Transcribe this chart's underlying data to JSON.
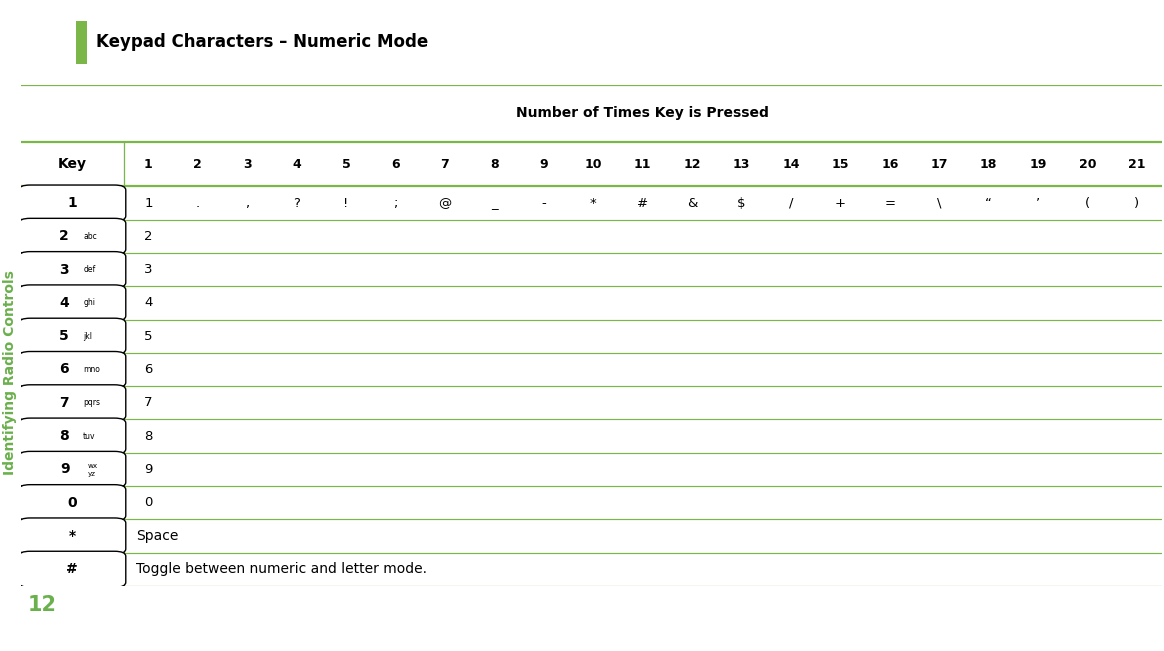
{
  "title": "Keypad Characters – Numeric Mode",
  "sidebar_text": "Identifying Radio Controls",
  "page_number": "12",
  "col_header": "Number of Times Key is Pressed",
  "col_numbers": [
    "1",
    "2",
    "3",
    "4",
    "5",
    "6",
    "7",
    "8",
    "9",
    "10",
    "11",
    "12",
    "13",
    "14",
    "15",
    "16",
    "17",
    "18",
    "19",
    "20",
    "21"
  ],
  "rows": [
    {
      "key_num": "1",
      "key_sub": "",
      "data": [
        "1",
        ".",
        ",",
        "?",
        "!",
        ";",
        "@",
        "_",
        "-",
        "*",
        "#",
        "&",
        "$",
        "/",
        "+",
        "=",
        "\\",
        "“",
        "’",
        "(",
        ")"
      ]
    },
    {
      "key_num": "2",
      "key_sub": "abc",
      "data": [
        "2",
        "",
        "",
        "",
        "",
        "",
        "",
        "",
        "",
        "",
        "",
        "",
        "",
        "",
        "",
        "",
        "",
        "",
        "",
        "",
        ""
      ]
    },
    {
      "key_num": "3",
      "key_sub": "def",
      "data": [
        "3",
        "",
        "",
        "",
        "",
        "",
        "",
        "",
        "",
        "",
        "",
        "",
        "",
        "",
        "",
        "",
        "",
        "",
        "",
        "",
        ""
      ]
    },
    {
      "key_num": "4",
      "key_sub": "ghi",
      "data": [
        "4",
        "",
        "",
        "",
        "",
        "",
        "",
        "",
        "",
        "",
        "",
        "",
        "",
        "",
        "",
        "",
        "",
        "",
        "",
        "",
        ""
      ]
    },
    {
      "key_num": "5",
      "key_sub": "jkl",
      "data": [
        "5",
        "",
        "",
        "",
        "",
        "",
        "",
        "",
        "",
        "",
        "",
        "",
        "",
        "",
        "",
        "",
        "",
        "",
        "",
        "",
        ""
      ]
    },
    {
      "key_num": "6",
      "key_sub": "mno",
      "data": [
        "6",
        "",
        "",
        "",
        "",
        "",
        "",
        "",
        "",
        "",
        "",
        "",
        "",
        "",
        "",
        "",
        "",
        "",
        "",
        "",
        ""
      ]
    },
    {
      "key_num": "7",
      "key_sub": "pqrs",
      "data": [
        "7",
        "",
        "",
        "",
        "",
        "",
        "",
        "",
        "",
        "",
        "",
        "",
        "",
        "",
        "",
        "",
        "",
        "",
        "",
        "",
        ""
      ]
    },
    {
      "key_num": "8",
      "key_sub": "tuv",
      "data": [
        "8",
        "",
        "",
        "",
        "",
        "",
        "",
        "",
        "",
        "",
        "",
        "",
        "",
        "",
        "",
        "",
        "",
        "",
        "",
        "",
        ""
      ]
    },
    {
      "key_num": "9",
      "key_sub": "wxyz",
      "data": [
        "9",
        "",
        "",
        "",
        "",
        "",
        "",
        "",
        "",
        "",
        "",
        "",
        "",
        "",
        "",
        "",
        "",
        "",
        "",
        "",
        ""
      ],
      "wxyz": true
    },
    {
      "key_num": "0",
      "key_sub": "",
      "data": [
        "0",
        "",
        "",
        "",
        "",
        "",
        "",
        "",
        "",
        "",
        "",
        "",
        "",
        "",
        "",
        "",
        "",
        "",
        "",
        "",
        ""
      ]
    },
    {
      "key_num": "*",
      "key_sub": "",
      "data": [
        "Space"
      ],
      "span": true
    },
    {
      "key_num": "#",
      "key_sub": "",
      "data": [
        "Toggle between numeric and letter mode."
      ],
      "span": true
    }
  ],
  "green_color": "#6ab04c",
  "line_color": "#7ab648",
  "bg_color": "#ffffff",
  "text_color": "#000000",
  "title_box_color": "#7ab648"
}
